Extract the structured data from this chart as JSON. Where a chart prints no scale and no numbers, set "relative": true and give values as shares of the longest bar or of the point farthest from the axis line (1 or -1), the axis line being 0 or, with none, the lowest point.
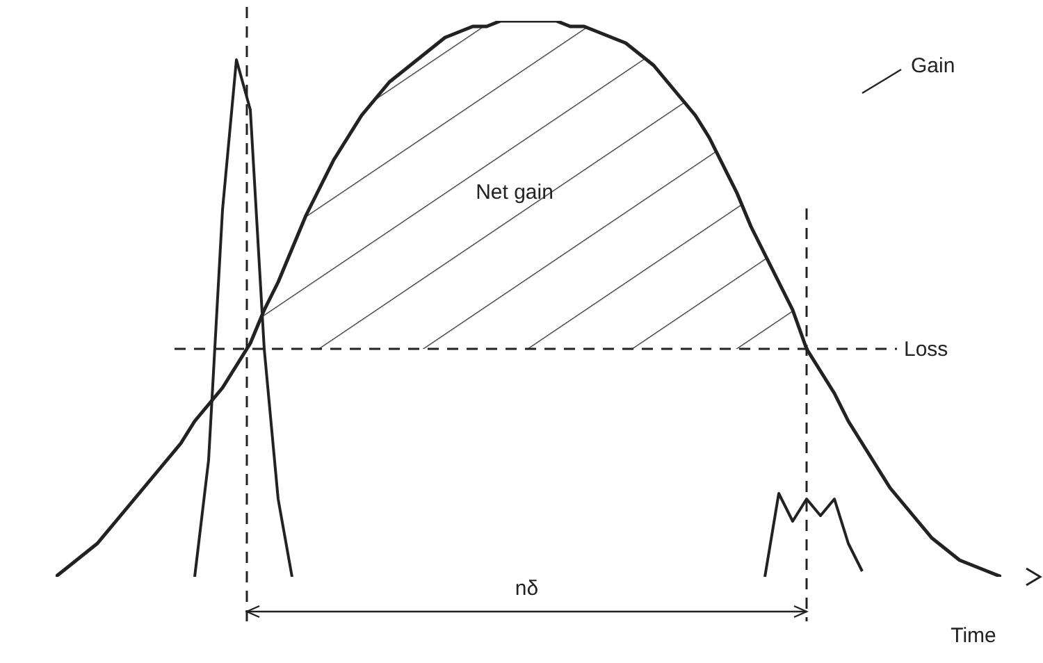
{
  "chart_data": {
    "type": "line",
    "relative": true,
    "xlabel": "Time",
    "grid": false,
    "legend": false,
    "marker": "none",
    "categories": [
      null,
      null,
      null,
      null,
      null,
      null,
      null,
      null,
      null,
      null,
      null,
      null,
      null,
      null,
      null,
      null,
      null,
      null,
      null,
      null,
      null,
      null,
      null,
      null,
      null,
      null,
      null,
      null,
      null,
      null,
      null,
      null,
      null,
      null,
      null,
      null,
      null,
      null,
      null,
      null,
      null,
      null,
      null,
      null,
      null,
      null,
      null,
      null,
      null,
      null,
      null,
      null,
      null,
      null,
      null,
      null,
      null,
      null,
      null,
      null,
      null,
      null,
      null,
      null,
      null,
      null,
      null,
      null,
      null
    ],
    "series": [
      {
        "color": "#222222",
        "line_style": "solid",
        "values": [
          0,
          0.02,
          0.04,
          0.06,
          0.09,
          0.12,
          0.15,
          0.18,
          0.21,
          0.24,
          0.28,
          0.31,
          0.34,
          0.38,
          0.42,
          0.48,
          0.53,
          0.59,
          0.65,
          0.7,
          0.75,
          0.79,
          0.83,
          0.86,
          0.89,
          0.91,
          0.93,
          0.95,
          0.97,
          0.98,
          0.99,
          0.99,
          1,
          1,
          1,
          1,
          1,
          0.99,
          0.99,
          0.98,
          0.97,
          0.96,
          0.94,
          0.92,
          0.89,
          0.86,
          0.83,
          0.79,
          0.74,
          0.69,
          0.63,
          0.58,
          0.53,
          0.48,
          0.41,
          0.37,
          0.33,
          0.28,
          0.24,
          0.2,
          0.16,
          0.13,
          0.1,
          0.07,
          0.05,
          0.03,
          0.02,
          0.01,
          0
        ]
      },
      {
        "color": "#222222",
        "line_style": "solid",
        "values": [
          null,
          null,
          null,
          null,
          null,
          null,
          null,
          null,
          null,
          null,
          0,
          0.21,
          0.66,
          0.93,
          0.84,
          0.41,
          0.14,
          0,
          null,
          null,
          null,
          null,
          null,
          null,
          null,
          null,
          null,
          null,
          null,
          null,
          null,
          null,
          null,
          null,
          null,
          null,
          null,
          null,
          null,
          null,
          null,
          null,
          null,
          null,
          null,
          null,
          null,
          null,
          null,
          null,
          null,
          null,
          null,
          null,
          null,
          null,
          null,
          null,
          null,
          null,
          null,
          null,
          null,
          null,
          null,
          null,
          null,
          null,
          null
        ]
      },
      {
        "color": "#222222",
        "line_style": "solid",
        "values": [
          null,
          null,
          null,
          null,
          null,
          null,
          null,
          null,
          null,
          null,
          null,
          null,
          null,
          null,
          null,
          null,
          null,
          null,
          null,
          null,
          null,
          null,
          null,
          null,
          null,
          null,
          null,
          null,
          null,
          null,
          null,
          null,
          null,
          null,
          null,
          null,
          null,
          null,
          null,
          null,
          null,
          null,
          null,
          null,
          null,
          null,
          null,
          null,
          null,
          null,
          null,
          0,
          0.15,
          0.1,
          0.14,
          0.11,
          0.14,
          0.06,
          0.01,
          null,
          null,
          null,
          null,
          null,
          null,
          null,
          null,
          null,
          null
        ]
      }
    ],
    "ref_lines": [
      {
        "axis": "y",
        "value": 0.41,
        "label": "Loss",
        "line_style": "dashed",
        "color": "#222222"
      }
    ],
    "annotations": [
      "Gain",
      "Net gain",
      "nδ"
    ]
  }
}
